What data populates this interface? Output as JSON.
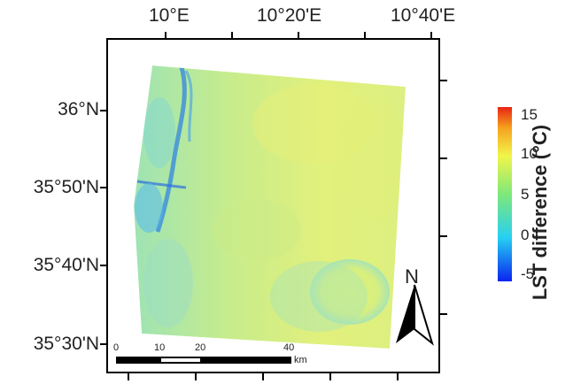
{
  "longitude_labels": [
    "10°E",
    "10°20'E",
    "10°40'E"
  ],
  "latitude_labels": [
    "36°N",
    "35°50'N",
    "35°40'N",
    "35°30'N"
  ],
  "colorbar": {
    "title": "LST difference (°C)",
    "ticks": [
      "15",
      "10",
      "5",
      "0",
      "-5"
    ],
    "range": [
      -5,
      15
    ],
    "colors": [
      "#0a24f0",
      "#26d0f2",
      "#7fe87a",
      "#f1f54a",
      "#f6a21e",
      "#e82414"
    ]
  },
  "scale_bar": {
    "ticks": [
      "0",
      "10",
      "20",
      "40"
    ],
    "unit": "km"
  },
  "north_arrow": {
    "label": "N"
  },
  "map_colors": {
    "base": "#b9e88f",
    "yellow": "#e6f078",
    "cyan": "#8ee0d6",
    "blue": "#2a7fe6"
  }
}
